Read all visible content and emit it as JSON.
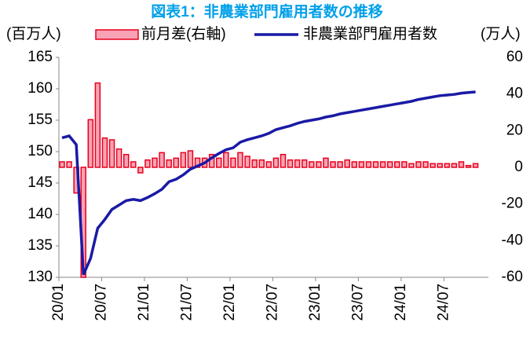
{
  "chart_data": {
    "type": "bar_line",
    "title": "図表1：非農業部門雇用者数の推移",
    "y_label": "(百万人)",
    "y2_label": "(万人)",
    "categories": [
      "20/01",
      null,
      null,
      null,
      null,
      null,
      "20/07",
      null,
      null,
      null,
      null,
      null,
      "21/01",
      null,
      null,
      null,
      null,
      null,
      "21/07",
      null,
      null,
      null,
      null,
      null,
      "22/01",
      null,
      null,
      null,
      null,
      null,
      "22/07",
      null,
      null,
      null,
      null,
      null,
      "23/01",
      null,
      null,
      null,
      null,
      null,
      "23/07",
      null,
      null,
      null,
      null,
      null,
      "24/01",
      null,
      null,
      null,
      null,
      null,
      "24/07",
      null,
      null,
      null,
      null
    ],
    "series": [
      {
        "name": "前月差(右軸)",
        "color": "#f7a3b5",
        "edge": "#e8001c",
        "axis": "y2",
        "kind": "bar",
        "values": [
          3,
          3,
          -14,
          -60,
          26,
          46,
          16,
          15,
          10,
          7,
          3,
          -3,
          4,
          5,
          8,
          4,
          5,
          8,
          9,
          5,
          5,
          7,
          5,
          8,
          5,
          8,
          6,
          4,
          4,
          3,
          5,
          7,
          4,
          4,
          4,
          3,
          3,
          5,
          3,
          3,
          4,
          3,
          3,
          3,
          3,
          3,
          3,
          3,
          3,
          2,
          3,
          3,
          2,
          2,
          2,
          2,
          3,
          1,
          2
        ]
      },
      {
        "name": "非農業部門雇用者数",
        "color": "#1a1aa6",
        "kind": "line",
        "values": [
          152.2,
          152.5,
          151.1,
          130.4,
          133.0,
          137.8,
          139.2,
          140.8,
          141.5,
          142.2,
          142.4,
          142.2,
          142.7,
          143.3,
          144.0,
          145.2,
          145.6,
          146.3,
          147.2,
          147.7,
          148.2,
          149.0,
          149.7,
          150.3,
          150.6,
          151.5,
          151.9,
          152.2,
          152.5,
          152.9,
          153.5,
          153.8,
          154.1,
          154.5,
          154.8,
          155.0,
          155.2,
          155.5,
          155.7,
          156.0,
          156.2,
          156.4,
          156.6,
          156.8,
          157.0,
          157.2,
          157.4,
          157.6,
          157.8,
          158.0,
          158.3,
          158.5,
          158.7,
          158.9,
          159.0,
          159.1,
          159.3,
          159.4,
          159.5
        ]
      }
    ],
    "ylim": [
      130,
      165
    ],
    "yticks": [
      130,
      135,
      140,
      145,
      150,
      155,
      160,
      165
    ],
    "y2lim": [
      -60,
      60
    ],
    "y2ticks": [
      -60,
      -40,
      -20,
      0,
      20,
      40,
      60
    ]
  }
}
